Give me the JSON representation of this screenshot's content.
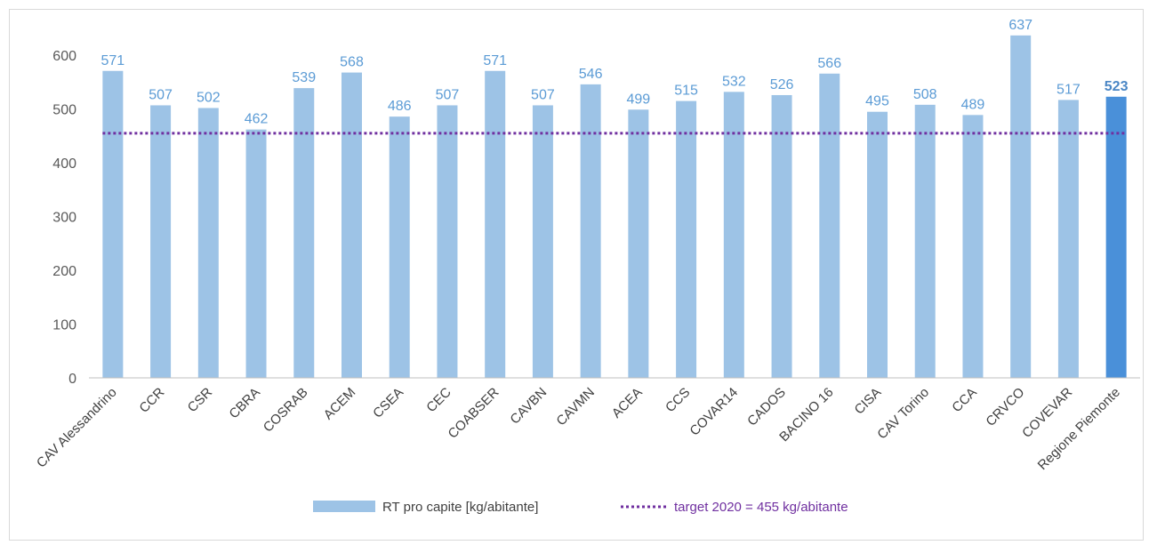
{
  "chart_data": {
    "type": "bar",
    "categories": [
      "CAV Alessandrino",
      "CCR",
      "CSR",
      "CBRA",
      "COSRAB",
      "ACEM",
      "CSEA",
      "CEC",
      "COABSER",
      "CAVBN",
      "CAVMN",
      "ACEA",
      "CCS",
      "COVAR14",
      "CADOS",
      "BACINO 16",
      "CISA",
      "CAV Torino",
      "CCA",
      "CRVCO",
      "COVEVAR",
      "Regione Piemonte"
    ],
    "series": [
      {
        "name": "RT pro capite [kg/abitante]",
        "values": [
          571,
          507,
          502,
          462,
          539,
          568,
          486,
          507,
          571,
          507,
          546,
          499,
          515,
          532,
          526,
          566,
          495,
          508,
          489,
          637,
          517,
          523
        ],
        "color": "#9dc3e6",
        "highlight_color": "#4a90d9"
      }
    ],
    "target": {
      "name": "target 2020 = 455 kg/abitante",
      "value": 455,
      "color": "#7030a0",
      "style": "dotted"
    },
    "ylim": [
      0,
      650
    ],
    "yticks": [
      0,
      100,
      200,
      300,
      400,
      500,
      600
    ],
    "grid": false,
    "legend_position": "bottom",
    "title": "",
    "xlabel": "",
    "ylabel": ""
  }
}
